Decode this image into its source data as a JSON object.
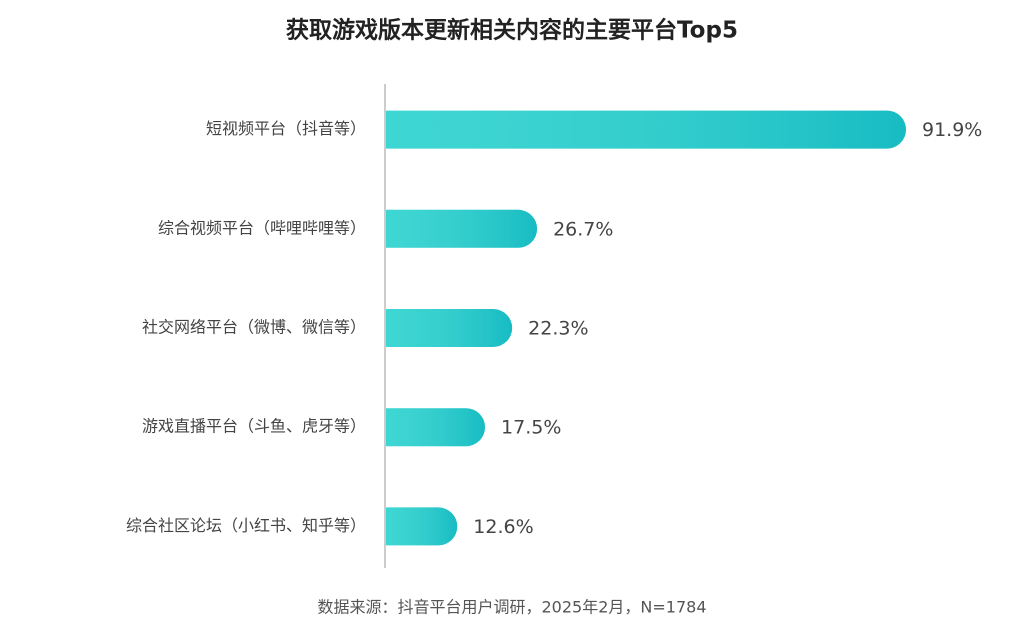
{
  "chart_data": {
    "type": "bar",
    "orientation": "horizontal",
    "title": "获取游戏版本更新相关内容的主要平台Top5",
    "categories": [
      "短视频平台（抖音等）",
      "综合视频平台（哔哩哔哩等）",
      "社交网络平台（微博、微信等）",
      "游戏直播平台（斗鱼、虎牙等）",
      "综合社区论坛（小红书、知乎等）"
    ],
    "values": [
      91.9,
      26.7,
      22.3,
      17.5,
      12.6
    ],
    "value_labels": [
      "91.9%",
      "26.7%",
      "22.3%",
      "17.5%",
      "12.6%"
    ],
    "color": "#1ccfca",
    "source": "数据来源：抖音平台用户调研，2025年2月，N=1784"
  }
}
